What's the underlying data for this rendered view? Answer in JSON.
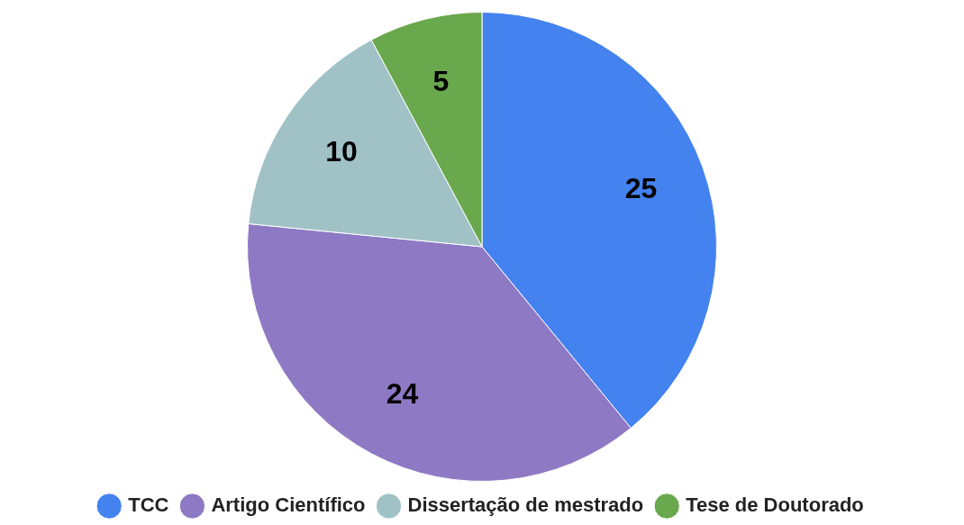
{
  "chart_data": {
    "type": "pie",
    "categories": [
      "TCC",
      "Artigo Científico",
      "Dissertação de mestrado",
      "Tese de Doutorado"
    ],
    "values": [
      25,
      24,
      10,
      5
    ],
    "colors": [
      "#4482f0",
      "#8e79c4",
      "#a0c2c7",
      "#69a84c"
    ],
    "data_labels": true,
    "legend": "bottom"
  }
}
